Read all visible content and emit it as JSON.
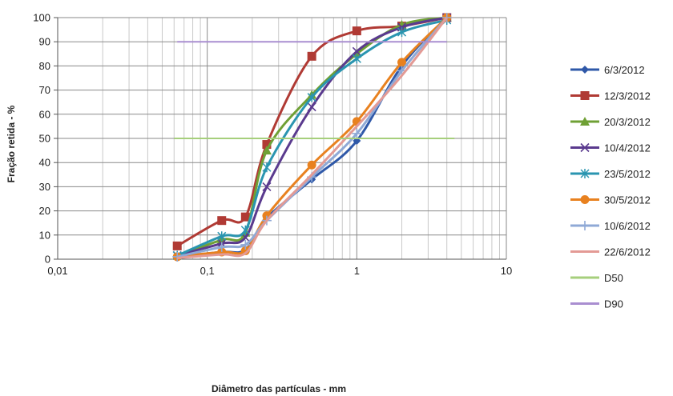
{
  "chart_data": {
    "type": "line",
    "title": "",
    "xlabel": "Diâmetro das partículas - mm",
    "ylabel": "Fração retida - %",
    "x_scale": "log",
    "xlim": [
      0.01,
      10
    ],
    "ylim": [
      0,
      100
    ],
    "x_tick_labels": [
      "0,01",
      "0,1",
      "1",
      "10"
    ],
    "y_ticks": [
      0,
      10,
      20,
      30,
      40,
      50,
      60,
      70,
      80,
      90,
      100
    ],
    "grid": "on (major and minor)",
    "legend_position": "right",
    "series": [
      {
        "name": "6/3/2012",
        "color": "#2f58a8",
        "marker": "diamond",
        "x": [
          0.063,
          0.125,
          0.18,
          0.25,
          0.5,
          1,
          2,
          4
        ],
        "y": [
          1,
          3,
          4,
          17,
          33,
          49,
          80,
          100
        ]
      },
      {
        "name": "12/3/2012",
        "color": "#b03a34",
        "marker": "square",
        "x": [
          0.063,
          0.125,
          0.18,
          0.25,
          0.5,
          1,
          2,
          4
        ],
        "y": [
          5.5,
          16,
          17.5,
          47.5,
          84,
          94.5,
          96.5,
          100
        ]
      },
      {
        "name": "20/3/2012",
        "color": "#6fa035",
        "marker": "triangle",
        "x": [
          0.063,
          0.125,
          0.18,
          0.25,
          0.5,
          1,
          2,
          4
        ],
        "y": [
          1.5,
          8,
          11,
          45,
          68,
          85,
          97,
          100
        ]
      },
      {
        "name": "10/4/2012",
        "color": "#5a3a8e",
        "marker": "x",
        "x": [
          0.063,
          0.125,
          0.18,
          0.25,
          0.5,
          1,
          2,
          4
        ],
        "y": [
          1.5,
          6.5,
          9,
          30,
          63,
          86,
          96,
          100
        ]
      },
      {
        "name": "23/5/2012",
        "color": "#2a95b0",
        "marker": "asterisk",
        "x": [
          0.063,
          0.125,
          0.18,
          0.25,
          0.5,
          1,
          2,
          4
        ],
        "y": [
          1.5,
          9.5,
          12,
          38,
          67,
          83,
          94,
          99
        ]
      },
      {
        "name": "30/5/2012",
        "color": "#e8811f",
        "marker": "circle",
        "x": [
          0.063,
          0.125,
          0.18,
          0.25,
          0.5,
          1,
          2,
          4
        ],
        "y": [
          1,
          3,
          3.5,
          18,
          39,
          57,
          81.5,
          100
        ]
      },
      {
        "name": "10/6/2012",
        "color": "#8fa9d6",
        "marker": "plus",
        "x": [
          0.063,
          0.125,
          0.18,
          0.25,
          0.5,
          1,
          2,
          4
        ],
        "y": [
          1,
          5,
          6,
          16,
          34,
          52,
          78,
          100
        ]
      },
      {
        "name": "22/6/2012",
        "color": "#e39a95",
        "marker": "none",
        "x": [
          0.063,
          0.125,
          0.18,
          0.25,
          0.5,
          1,
          2,
          4
        ],
        "y": [
          0.5,
          2,
          2.5,
          16,
          35,
          55,
          76,
          100
        ]
      },
      {
        "name": "D50",
        "color": "#a6cf7c",
        "marker": "none",
        "x": [
          0.06,
          4.5
        ],
        "y": [
          50,
          50
        ]
      },
      {
        "name": "D90",
        "color": "#a98ed0",
        "marker": "none",
        "x": [
          0.063,
          4
        ],
        "y": [
          90,
          90
        ]
      }
    ]
  }
}
